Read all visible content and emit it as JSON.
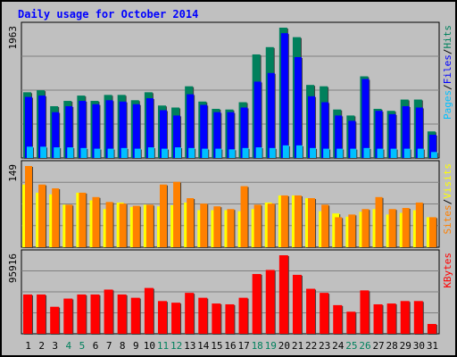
{
  "chart_data": [
    {
      "type": "bar",
      "title": "Daily usage for October 2014",
      "panel": "pages-files-hits",
      "ymax_label": "1963",
      "side_labels": [
        "Pages",
        "Files",
        "Hits"
      ],
      "grid": true,
      "categories": [
        "1",
        "2",
        "3",
        "4",
        "5",
        "6",
        "7",
        "8",
        "9",
        "10",
        "11",
        "12",
        "13",
        "14",
        "15",
        "16",
        "17",
        "18",
        "19",
        "20",
        "21",
        "22",
        "23",
        "24",
        "25",
        "26",
        "27",
        "28",
        "29",
        "30",
        "31"
      ],
      "weekend_days": [
        "4",
        "5",
        "11",
        "12",
        "18",
        "19",
        "25",
        "26"
      ],
      "series": [
        {
          "name": "Hits",
          "values": [
            990,
            1020,
            780,
            860,
            940,
            860,
            950,
            950,
            870,
            990,
            790,
            760,
            1080,
            850,
            740,
            730,
            840,
            1560,
            1670,
            1963,
            1820,
            1100,
            1080,
            730,
            640,
            1230,
            740,
            710,
            880,
            880,
            400
          ]
        },
        {
          "name": "Files",
          "values": [
            920,
            940,
            690,
            780,
            860,
            810,
            870,
            850,
            810,
            900,
            720,
            640,
            960,
            800,
            690,
            690,
            760,
            1150,
            1280,
            1880,
            1520,
            930,
            840,
            640,
            560,
            1190,
            710,
            660,
            780,
            760,
            350
          ]
        },
        {
          "name": "Pages",
          "values": [
            170,
            170,
            160,
            160,
            150,
            140,
            140,
            150,
            140,
            160,
            140,
            160,
            150,
            140,
            140,
            130,
            150,
            160,
            150,
            190,
            190,
            150,
            140,
            140,
            140,
            150,
            140,
            140,
            140,
            140,
            90
          ]
        }
      ],
      "ylim": [
        0,
        1963
      ]
    },
    {
      "type": "bar",
      "panel": "visits-sites",
      "ymax_label": "149",
      "side_labels": [
        "Sites",
        "Visits"
      ],
      "grid": true,
      "categories": [
        "1",
        "2",
        "3",
        "4",
        "5",
        "6",
        "7",
        "8",
        "9",
        "10",
        "11",
        "12",
        "13",
        "14",
        "15",
        "16",
        "17",
        "18",
        "19",
        "20",
        "21",
        "22",
        "23",
        "24",
        "25",
        "26",
        "27",
        "28",
        "29",
        "30",
        "31"
      ],
      "series": [
        {
          "name": "Visits",
          "values": [
            115,
            100,
            97,
            78,
            100,
            86,
            70,
            82,
            74,
            78,
            75,
            77,
            82,
            68,
            68,
            68,
            66,
            70,
            82,
            95,
            95,
            90,
            66,
            62,
            56,
            65,
            70,
            60,
            63,
            68,
            55
          ]
        },
        {
          "name": "Sites",
          "values": [
            149,
            115,
            108,
            78,
            100,
            92,
            83,
            80,
            76,
            78,
            115,
            120,
            90,
            80,
            75,
            70,
            112,
            78,
            80,
            95,
            95,
            90,
            78,
            55,
            60,
            70,
            92,
            70,
            72,
            82,
            55
          ]
        }
      ],
      "ylim": [
        0,
        149
      ]
    },
    {
      "type": "bar",
      "panel": "kbytes",
      "ymax_label": "95916",
      "side_labels": [
        "KBytes"
      ],
      "grid": true,
      "categories": [
        "1",
        "2",
        "3",
        "4",
        "5",
        "6",
        "7",
        "8",
        "9",
        "10",
        "11",
        "12",
        "13",
        "14",
        "15",
        "16",
        "17",
        "18",
        "19",
        "20",
        "21",
        "22",
        "23",
        "24",
        "25",
        "26",
        "27",
        "28",
        "29",
        "30",
        "31"
      ],
      "series": [
        {
          "name": "KBytes",
          "values": [
            48000,
            48000,
            33000,
            43000,
            48000,
            48000,
            54000,
            48000,
            44000,
            56000,
            40000,
            38000,
            50000,
            44000,
            37000,
            36000,
            44000,
            73000,
            78000,
            95916,
            72000,
            55000,
            50000,
            35000,
            27000,
            53000,
            36000,
            37000,
            40000,
            40000,
            12000
          ]
        }
      ],
      "ylim": [
        0,
        95916
      ]
    }
  ],
  "colors": {
    "background": "#c0c0c0",
    "title": "#0000ff",
    "hits": "#00805c",
    "files": "#0000ff",
    "pages": "#00c0ff",
    "visits": "#ffff00",
    "sites": "#ff8000",
    "kbytes": "#ff0000",
    "weekday_label": "#000000",
    "weekend_label": "#00805c"
  }
}
